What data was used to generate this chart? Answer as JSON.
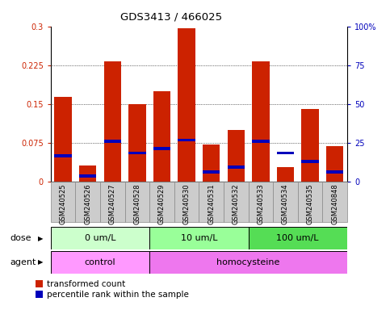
{
  "title": "GDS3413 / 466025",
  "samples": [
    "GSM240525",
    "GSM240526",
    "GSM240527",
    "GSM240528",
    "GSM240529",
    "GSM240530",
    "GSM240531",
    "GSM240532",
    "GSM240533",
    "GSM240534",
    "GSM240535",
    "GSM240848"
  ],
  "red_values": [
    0.163,
    0.03,
    0.232,
    0.15,
    0.175,
    0.297,
    0.072,
    0.1,
    0.232,
    0.027,
    0.14,
    0.068
  ],
  "blue_y_values": [
    0.05,
    0.01,
    0.077,
    0.055,
    0.063,
    0.08,
    0.018,
    0.028,
    0.077,
    0.055,
    0.038,
    0.018
  ],
  "red_color": "#cc2200",
  "blue_color": "#0000bb",
  "ylim_left": [
    0,
    0.3
  ],
  "ylim_right": [
    0,
    100
  ],
  "yticks_left": [
    0,
    0.075,
    0.15,
    0.225,
    0.3
  ],
  "ytick_labels_left": [
    "0",
    "0.075",
    "0.15",
    "0.225",
    "0.3"
  ],
  "yticks_right": [
    0,
    25,
    50,
    75,
    100
  ],
  "ytick_labels_right": [
    "0",
    "25",
    "50",
    "75",
    "100%"
  ],
  "dose_groups": [
    {
      "label": "0 um/L",
      "start": 0,
      "end": 4,
      "color": "#ccffcc"
    },
    {
      "label": "10 um/L",
      "start": 4,
      "end": 8,
      "color": "#99ff99"
    },
    {
      "label": "100 um/L",
      "start": 8,
      "end": 12,
      "color": "#55dd55"
    }
  ],
  "agent_groups": [
    {
      "label": "control",
      "start": 0,
      "end": 4,
      "color": "#ff99ff"
    },
    {
      "label": "homocysteine",
      "start": 4,
      "end": 12,
      "color": "#ee77ee"
    }
  ],
  "legend_red": "transformed count",
  "legend_blue": "percentile rank within the sample",
  "dose_label": "dose",
  "agent_label": "agent",
  "bar_width": 0.7,
  "blue_bar_width": 0.7,
  "blue_bar_height": 0.006,
  "bg_color": "#ffffff",
  "tick_label_color_left": "#cc2200",
  "tick_label_color_right": "#0000bb",
  "xticklabel_bg": "#cccccc"
}
